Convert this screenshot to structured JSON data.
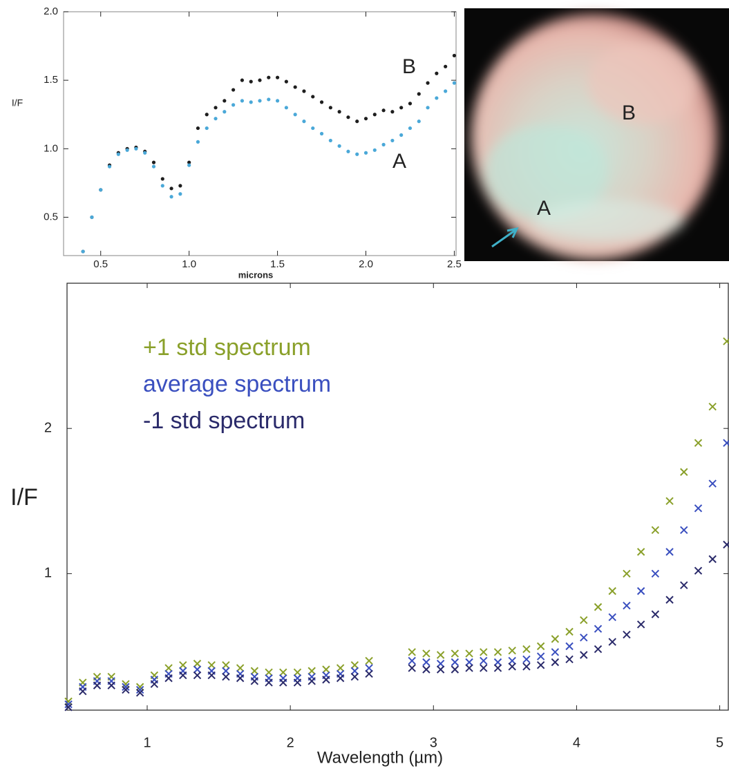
{
  "chart_data": [
    {
      "type": "scatter",
      "marker": "dot",
      "y_label": "I/F",
      "x_label": "microns",
      "xlim": [
        0.29,
        2.51
      ],
      "ylim": [
        0.22,
        2.0
      ],
      "xticks": [
        0.5,
        {
          "value": 1,
          "label": "1.0"
        },
        1.5,
        {
          "value": 2,
          "label": "2.0"
        },
        2.5
      ],
      "yticks": [
        0.5,
        {
          "value": 1,
          "label": "1.0"
        },
        1.5,
        {
          "value": 2,
          "label": "2.0"
        }
      ],
      "annotations": [
        "B",
        "A"
      ],
      "x": [
        0.4,
        0.45,
        0.5,
        0.55,
        0.6,
        0.65,
        0.7,
        0.75,
        0.8,
        0.85,
        0.9,
        0.95,
        1.0,
        1.05,
        1.1,
        1.15,
        1.2,
        1.25,
        1.3,
        1.35,
        1.4,
        1.45,
        1.5,
        1.55,
        1.6,
        1.65,
        1.7,
        1.75,
        1.8,
        1.85,
        1.9,
        1.95,
        2.0,
        2.05,
        2.1,
        2.15,
        2.2,
        2.25,
        2.3,
        2.35,
        2.4,
        2.45,
        2.5
      ],
      "series": [
        {
          "name": "B",
          "color": "#1e1e1e",
          "values": [
            0.25,
            0.5,
            0.7,
            0.88,
            0.97,
            1.0,
            1.01,
            0.98,
            0.9,
            0.78,
            0.71,
            0.73,
            0.9,
            1.15,
            1.25,
            1.3,
            1.35,
            1.43,
            1.5,
            1.49,
            1.5,
            1.52,
            1.52,
            1.49,
            1.45,
            1.42,
            1.38,
            1.34,
            1.3,
            1.27,
            1.23,
            1.2,
            1.22,
            1.25,
            1.28,
            1.27,
            1.3,
            1.33,
            1.4,
            1.48,
            1.55,
            1.6,
            1.68
          ]
        },
        {
          "name": "A",
          "color": "#4aa8d8",
          "values": [
            0.25,
            0.5,
            0.7,
            0.87,
            0.96,
            0.99,
            1.0,
            0.97,
            0.87,
            0.73,
            0.65,
            0.67,
            0.88,
            1.05,
            1.15,
            1.22,
            1.27,
            1.32,
            1.35,
            1.34,
            1.35,
            1.36,
            1.35,
            1.3,
            1.25,
            1.2,
            1.15,
            1.11,
            1.06,
            1.02,
            0.98,
            0.96,
            0.97,
            0.99,
            1.03,
            1.06,
            1.1,
            1.15,
            1.2,
            1.3,
            1.37,
            1.42,
            1.48
          ]
        }
      ]
    },
    {
      "type": "scatter",
      "marker": "x",
      "y_label": "I/F",
      "x_label": "Wavelength (µm)",
      "xlim": [
        0.44,
        5.06
      ],
      "ylim": [
        0.06,
        3.0
      ],
      "xticks": [
        1,
        2,
        3,
        4,
        5
      ],
      "yticks": [
        1,
        2
      ],
      "x": [
        0.45,
        0.55,
        0.65,
        0.75,
        0.85,
        0.95,
        1.05,
        1.15,
        1.25,
        1.35,
        1.45,
        1.55,
        1.65,
        1.75,
        1.85,
        1.95,
        2.05,
        2.15,
        2.25,
        2.35,
        2.45,
        2.55,
        2.65,
        2.75,
        2.85,
        2.95,
        3.05,
        3.15,
        3.25,
        3.35,
        3.45,
        3.55,
        3.65,
        3.75,
        3.85,
        3.95,
        4.05,
        4.15,
        4.25,
        4.35,
        4.45,
        4.55,
        4.65,
        4.75,
        4.85,
        4.95,
        5.05
      ],
      "series": [
        {
          "name": "+1 std spectrum",
          "color": "#8aa02a",
          "values": [
            0.12,
            0.25,
            0.29,
            0.29,
            0.24,
            0.22,
            0.3,
            0.35,
            0.37,
            0.38,
            0.37,
            0.37,
            0.35,
            0.33,
            0.32,
            0.32,
            0.32,
            0.33,
            0.34,
            0.35,
            0.37,
            0.4,
            null,
            null,
            0.46,
            0.45,
            0.44,
            0.45,
            0.45,
            0.46,
            0.46,
            0.47,
            0.48,
            0.5,
            0.55,
            0.6,
            0.68,
            0.77,
            0.88,
            1.0,
            1.15,
            1.3,
            1.5,
            1.7,
            1.9,
            2.15,
            2.6
          ]
        },
        {
          "name": "average spectrum",
          "color": "#3a4fbf",
          "values": [
            0.1,
            0.22,
            0.26,
            0.26,
            0.22,
            0.2,
            0.27,
            0.31,
            0.33,
            0.34,
            0.33,
            0.33,
            0.31,
            0.29,
            0.28,
            0.28,
            0.28,
            0.29,
            0.3,
            0.31,
            0.33,
            0.35,
            null,
            null,
            0.4,
            0.39,
            0.38,
            0.39,
            0.39,
            0.4,
            0.39,
            0.4,
            0.41,
            0.43,
            0.46,
            0.5,
            0.56,
            0.62,
            0.7,
            0.78,
            0.88,
            1.0,
            1.15,
            1.3,
            1.45,
            1.62,
            1.9
          ]
        },
        {
          "name": "-1  std spectrum",
          "color": "#2a2a6a",
          "values": [
            0.08,
            0.19,
            0.23,
            0.23,
            0.2,
            0.18,
            0.24,
            0.28,
            0.3,
            0.3,
            0.3,
            0.29,
            0.28,
            0.26,
            0.25,
            0.25,
            0.25,
            0.26,
            0.27,
            0.28,
            0.29,
            0.31,
            null,
            null,
            0.35,
            0.34,
            0.34,
            0.34,
            0.35,
            0.35,
            0.35,
            0.36,
            0.36,
            0.37,
            0.39,
            0.41,
            0.44,
            0.48,
            0.53,
            0.58,
            0.65,
            0.72,
            0.82,
            0.92,
            1.02,
            1.1,
            1.2
          ]
        }
      ]
    }
  ],
  "image": {
    "labels": [
      "B",
      "A"
    ]
  }
}
